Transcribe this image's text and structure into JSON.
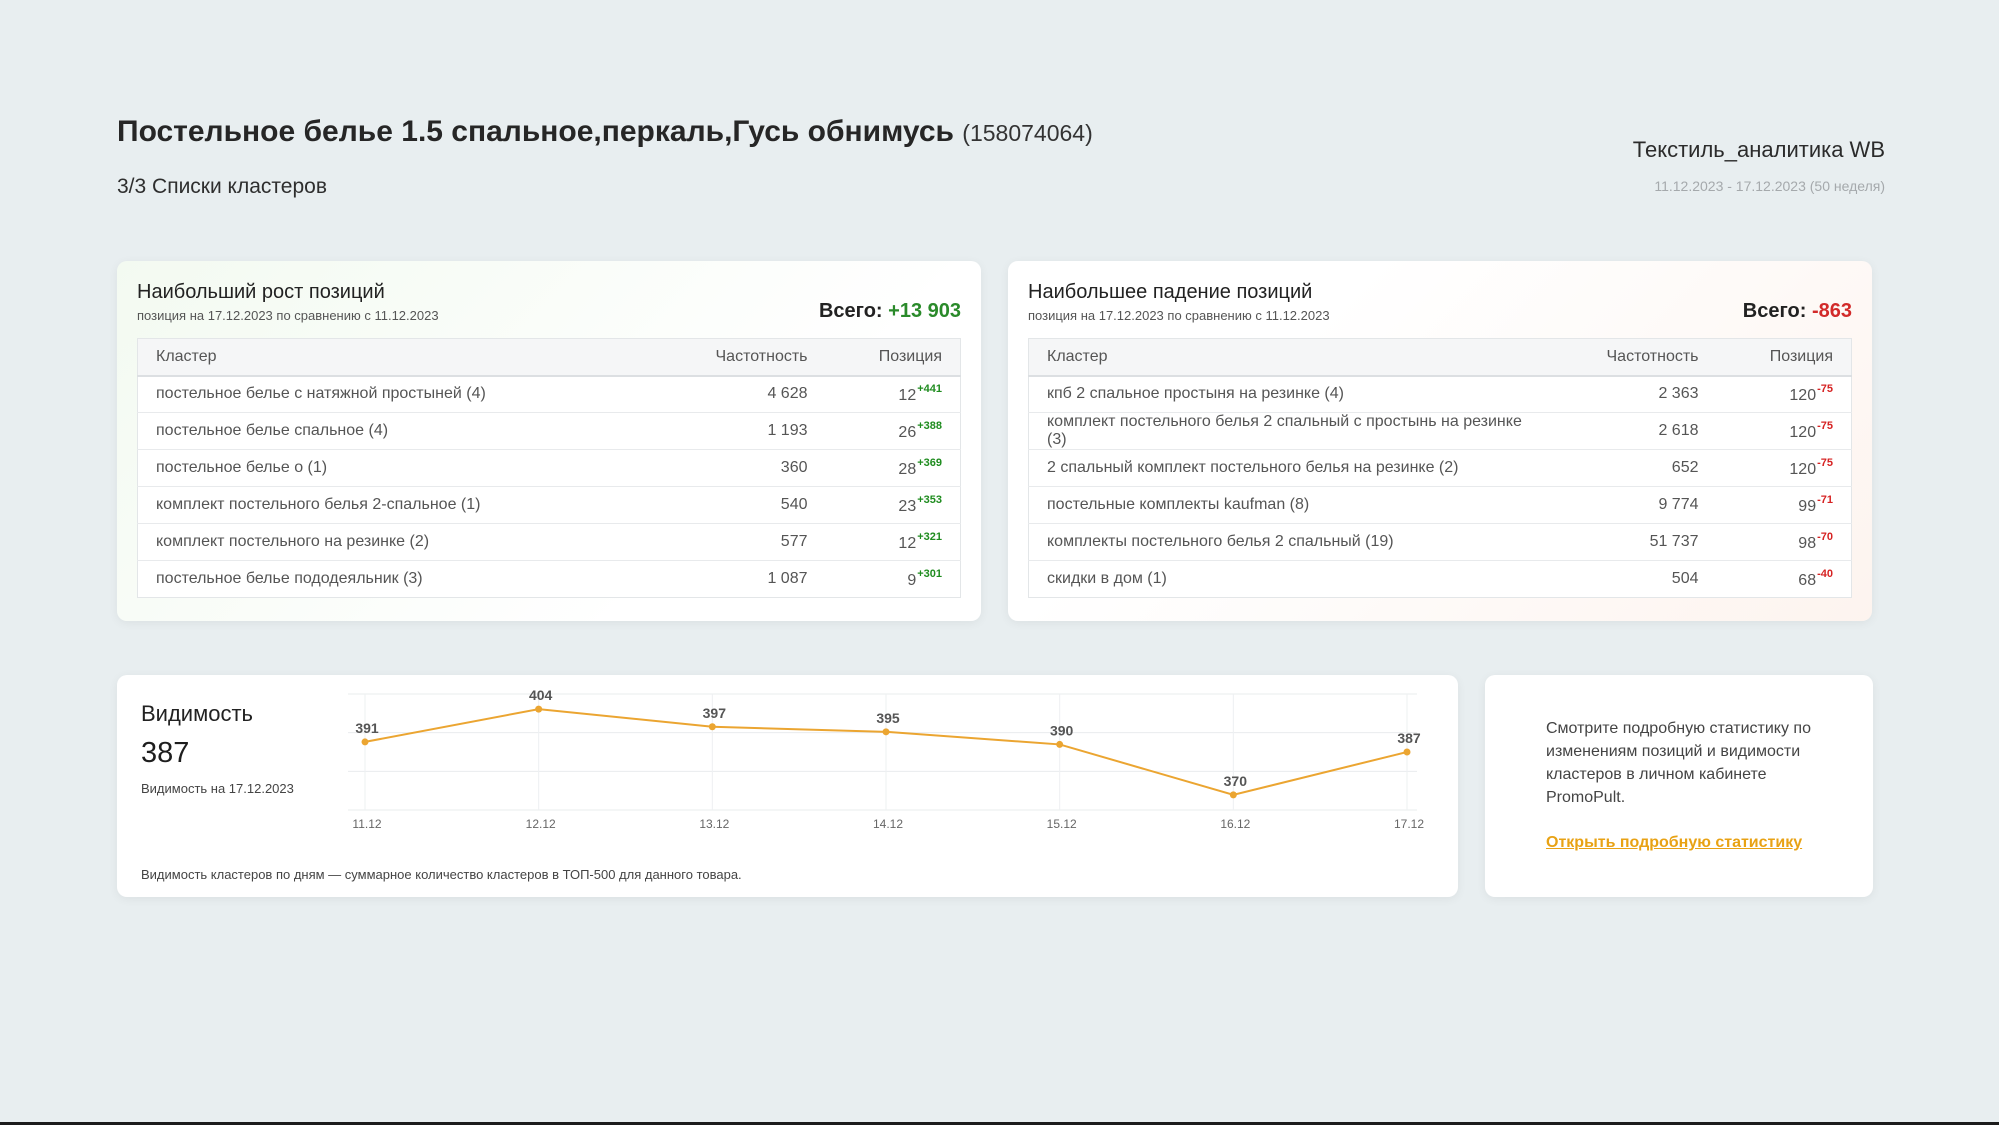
{
  "header": {
    "product_title": "Постельное белье 1.5 спальное,перкаль,Гусь обнимусь",
    "product_id": "(158074064)",
    "subtitle": "3/3 Списки кластеров",
    "brand": "Текстиль_аналитика WB",
    "date_range": "11.12.2023 - 17.12.2023 (50 неделя)"
  },
  "growth": {
    "title": "Наибольший рост позиций",
    "note": "позиция на 17.12.2023 по сравнению с 11.12.2023",
    "total_label": "Всего:",
    "total_value": "+13 903",
    "columns": [
      "Кластер",
      "Частотность",
      "Позиция"
    ],
    "rows": [
      {
        "cluster": "постельное белье с натяжной простыней (4)",
        "freq": "4 628",
        "pos": "12",
        "delta": "+441"
      },
      {
        "cluster": "постельное белье спальное (4)",
        "freq": "1 193",
        "pos": "26",
        "delta": "+388"
      },
      {
        "cluster": "постельное белье о (1)",
        "freq": "360",
        "pos": "28",
        "delta": "+369"
      },
      {
        "cluster": "комплект постельного белья 2-спальное (1)",
        "freq": "540",
        "pos": "23",
        "delta": "+353"
      },
      {
        "cluster": "комплект постельного на резинке (2)",
        "freq": "577",
        "pos": "12",
        "delta": "+321"
      },
      {
        "cluster": "постельное белье пододеяльник (3)",
        "freq": "1 087",
        "pos": "9",
        "delta": "+301"
      }
    ]
  },
  "decline": {
    "title": "Наибольшее падение позиций",
    "note": "позиция на 17.12.2023 по сравнению с 11.12.2023",
    "total_label": "Всего:",
    "total_value": "-863",
    "columns": [
      "Кластер",
      "Частотность",
      "Позиция"
    ],
    "rows": [
      {
        "cluster": "кпб 2 спальное простыня на резинке (4)",
        "freq": "2 363",
        "pos": "120",
        "delta": "-75"
      },
      {
        "cluster": "комплект постельного белья 2 спальный с простынь на резинке (3)",
        "freq": "2 618",
        "pos": "120",
        "delta": "-75"
      },
      {
        "cluster": "2 спальный комплект постельного белья на резинке (2)",
        "freq": "652",
        "pos": "120",
        "delta": "-75"
      },
      {
        "cluster": "постельные комплекты kaufman (8)",
        "freq": "9 774",
        "pos": "99",
        "delta": "-71"
      },
      {
        "cluster": "комплекты постельного белья 2 спальный (19)",
        "freq": "51 737",
        "pos": "98",
        "delta": "-70"
      },
      {
        "cluster": "скидки в дом (1)",
        "freq": "504",
        "pos": "68",
        "delta": "-40"
      }
    ]
  },
  "visibility": {
    "title": "Видимость",
    "value": "387",
    "date_note": "Видимость на 17.12.2023",
    "footnote": "Видимость кластеров по дням — суммарное количество кластеров в ТОП-500 для данного товара.",
    "line_color": "#eba531"
  },
  "chart_data": {
    "type": "line",
    "x": [
      "11.12",
      "12.12",
      "13.12",
      "14.12",
      "15.12",
      "16.12",
      "17.12"
    ],
    "series": [
      {
        "values": [
          391,
          404,
          397,
          395,
          390,
          370,
          387
        ]
      }
    ],
    "ylim": [
      364,
      410
    ],
    "grid": true,
    "data_labels": true
  },
  "info": {
    "text": "Смотрите подробную статистику по изменениям позиций и видимости кластеров в личном кабинете PromoPult.",
    "link": "Открыть подробную статистику"
  }
}
